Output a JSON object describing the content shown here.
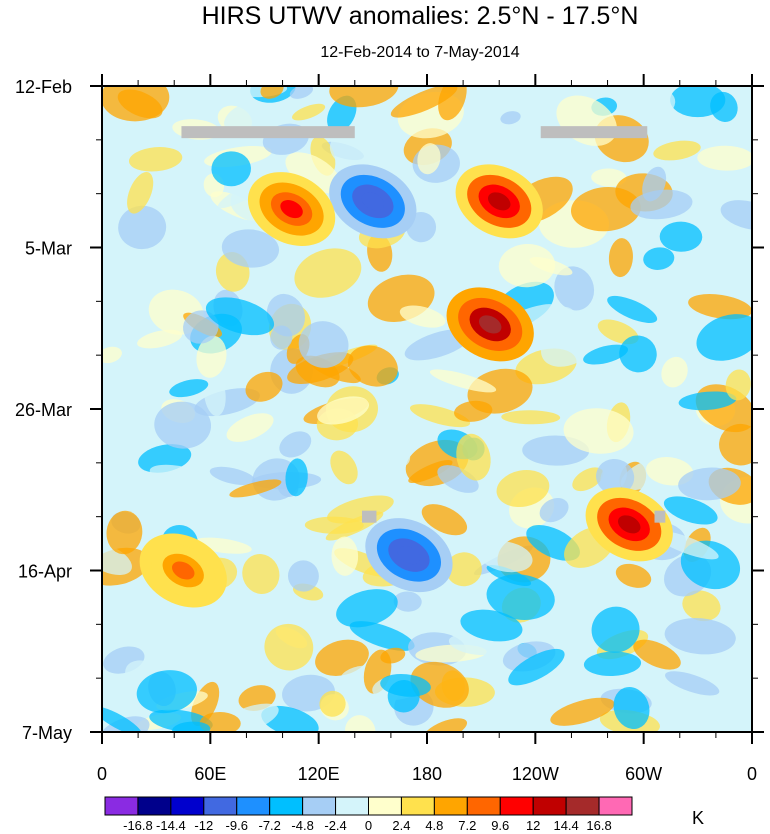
{
  "chart_data": {
    "type": "heatmap",
    "title": "HIRS UTWV anomalies: 2.5°N - 17.5°N",
    "subtitle": "12-Feb-2014 to 7-May-2014",
    "x_ticks": [
      "0",
      "60E",
      "120E",
      "180",
      "120W",
      "60W",
      "0"
    ],
    "x_tick_lon": [
      0,
      60,
      120,
      180,
      240,
      300,
      360
    ],
    "y_ticks": [
      "12-Feb",
      "5-Mar",
      "26-Mar",
      "16-Apr",
      "7-May"
    ],
    "y_tick_day": [
      0,
      21,
      42,
      63,
      84
    ],
    "xlim": [
      0,
      360
    ],
    "ylim_days": [
      0,
      84
    ],
    "colorbar_unit": "K",
    "colorbar_levels": [
      "-16.8",
      "-14.4",
      "-12",
      "-9.6",
      "-7.2",
      "-4.8",
      "-2.4",
      "0",
      "2.4",
      "4.8",
      "7.2",
      "9.6",
      "12",
      "14.4",
      "16.8"
    ],
    "colorbar_colors": [
      "#8A2BE2",
      "#00008B",
      "#0000CD",
      "#4169E1",
      "#1E90FF",
      "#00BFFF",
      "#A6CEF5",
      "#D4F4FA",
      "#FFFFCC",
      "#FFE14D",
      "#FFA500",
      "#FF6600",
      "#FF0000",
      "#C00000",
      "#A52A2A",
      "#FF69B4"
    ],
    "notable_features": [
      {
        "label": "dry anomaly",
        "lon": 150,
        "day": 15,
        "value": -12
      },
      {
        "label": "moist anomaly",
        "lon": 105,
        "day": 16,
        "value": 9.6
      },
      {
        "label": "moist anomaly",
        "lon": 220,
        "day": 15,
        "value": 12
      },
      {
        "label": "moist anomaly",
        "lon": 215,
        "day": 31,
        "value": 14.4
      },
      {
        "label": "moist anomaly",
        "lon": 45,
        "day": 63,
        "value": 7.2
      },
      {
        "label": "dry anomaly",
        "lon": 170,
        "day": 61,
        "value": -12
      },
      {
        "label": "moist anomaly",
        "lon": 292,
        "day": 57,
        "value": 12
      }
    ],
    "missing_data_bars": [
      {
        "lon_start": 44,
        "lon_end": 140,
        "day": 6
      },
      {
        "lon_start": 243,
        "lon_end": 302,
        "day": 6
      },
      {
        "lon_start": 144,
        "lon_end": 152,
        "day": 56
      },
      {
        "lon_start": 306,
        "lon_end": 312,
        "day": 56
      }
    ]
  }
}
